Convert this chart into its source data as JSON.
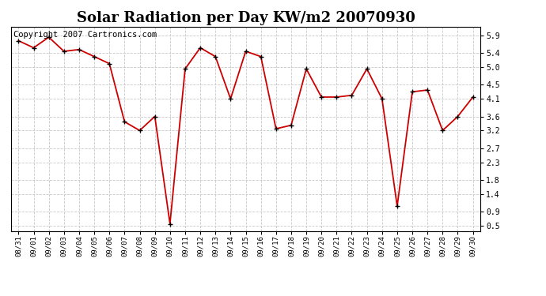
{
  "title": "Solar Radiation per Day KW/m2 20070930",
  "copyright": "Copyright 2007 Cartronics.com",
  "labels": [
    "08/31",
    "09/01",
    "09/02",
    "09/03",
    "09/04",
    "09/05",
    "09/06",
    "09/07",
    "09/08",
    "09/09",
    "09/10",
    "09/11",
    "09/12",
    "09/13",
    "09/14",
    "09/15",
    "09/16",
    "09/17",
    "09/18",
    "09/19",
    "09/20",
    "09/21",
    "09/22",
    "09/23",
    "09/24",
    "09/25",
    "09/26",
    "09/27",
    "09/28",
    "09/29",
    "09/30"
  ],
  "values": [
    5.75,
    5.55,
    5.85,
    5.45,
    5.5,
    5.3,
    5.1,
    3.45,
    3.2,
    3.6,
    0.55,
    4.95,
    5.55,
    5.3,
    4.1,
    5.45,
    5.3,
    3.25,
    3.35,
    4.95,
    4.15,
    4.15,
    4.2,
    4.95,
    4.1,
    1.05,
    4.3,
    4.35,
    3.2,
    3.6,
    4.15
  ],
  "line_color": "#cc0000",
  "marker_edge_color": "#000000",
  "bg_color": "#ffffff",
  "grid_color": "#c8c8c8",
  "title_fontsize": 13,
  "yticks": [
    0.5,
    0.9,
    1.4,
    1.8,
    2.3,
    2.7,
    3.2,
    3.6,
    4.1,
    4.5,
    5.0,
    5.4,
    5.9
  ],
  "ylim": [
    0.35,
    6.15
  ],
  "xlim": [
    -0.5,
    30.5
  ],
  "copyright_fontsize": 7.5,
  "figsize": [
    6.9,
    3.75
  ],
  "dpi": 100
}
